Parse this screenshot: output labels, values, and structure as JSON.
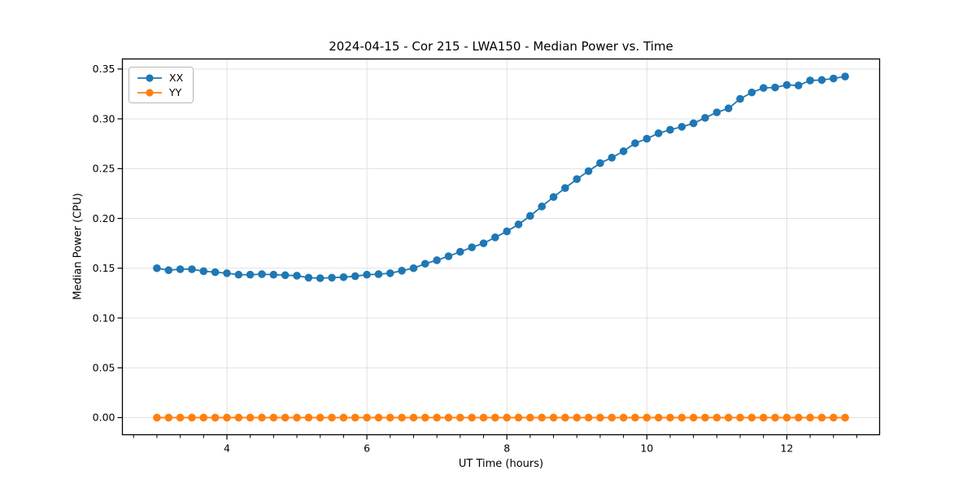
{
  "page": {
    "background": "#ffffff"
  },
  "chart_data": {
    "type": "line",
    "title": "2024-04-15 - Cor 215 - LWA150 - Median Power vs. Time",
    "xlabel": "UT Time (hours)",
    "ylabel": "Median Power (CPU)",
    "xlim": [
      2.507,
      13.326
    ],
    "ylim": [
      -0.0172,
      0.3601
    ],
    "x_major_ticks": [
      4,
      6,
      8,
      10,
      12
    ],
    "x_tick_labels": [
      "4",
      "6",
      "8",
      "10",
      "12"
    ],
    "x_minor_step": 0.333333,
    "y_ticks": [
      0.0,
      0.05,
      0.1,
      0.15,
      0.2,
      0.25,
      0.3,
      0.35
    ],
    "y_tick_labels": [
      "0.00",
      "0.05",
      "0.10",
      "0.15",
      "0.20",
      "0.25",
      "0.30",
      "0.35"
    ],
    "grid": true,
    "legend_position": "upper-left",
    "colors": {
      "grid": "#e0e0e0",
      "axis": "#000000",
      "text": "#000000"
    },
    "x": [
      3.0,
      3.167,
      3.333,
      3.5,
      3.667,
      3.833,
      4.0,
      4.167,
      4.333,
      4.5,
      4.667,
      4.833,
      5.0,
      5.167,
      5.333,
      5.5,
      5.667,
      5.833,
      6.0,
      6.167,
      6.333,
      6.5,
      6.667,
      6.833,
      7.0,
      7.167,
      7.333,
      7.5,
      7.667,
      7.833,
      8.0,
      8.167,
      8.333,
      8.5,
      8.667,
      8.833,
      9.0,
      9.167,
      9.333,
      9.5,
      9.667,
      9.833,
      10.0,
      10.167,
      10.333,
      10.5,
      10.667,
      10.833,
      11.0,
      11.167,
      11.333,
      11.5,
      11.667,
      11.833,
      12.0,
      12.167,
      12.333,
      12.5,
      12.667,
      12.833
    ],
    "series": [
      {
        "name": "XX",
        "color": "#1f77b4",
        "values": [
          0.15,
          0.148,
          0.149,
          0.149,
          0.147,
          0.146,
          0.145,
          0.1435,
          0.1435,
          0.144,
          0.1435,
          0.143,
          0.1425,
          0.1405,
          0.14,
          0.1405,
          0.141,
          0.142,
          0.1435,
          0.144,
          0.145,
          0.1475,
          0.15,
          0.1545,
          0.158,
          0.162,
          0.1665,
          0.171,
          0.175,
          0.181,
          0.187,
          0.194,
          0.2025,
          0.212,
          0.2215,
          0.2305,
          0.2395,
          0.2475,
          0.2555,
          0.261,
          0.2675,
          0.2755,
          0.28,
          0.2855,
          0.289,
          0.292,
          0.2955,
          0.301,
          0.3065,
          0.3105,
          0.32,
          0.3265,
          0.331,
          0.3315,
          0.334,
          0.3335,
          0.3385,
          0.339,
          0.3405,
          0.3425
        ]
      },
      {
        "name": "YY",
        "color": "#ff7f0e",
        "values": [
          0.0,
          0.0,
          0.0,
          0.0,
          0.0,
          0.0,
          0.0,
          0.0,
          0.0,
          0.0,
          0.0,
          0.0,
          0.0,
          0.0,
          0.0,
          0.0,
          0.0,
          0.0,
          0.0,
          0.0,
          0.0,
          0.0,
          0.0,
          0.0,
          0.0,
          0.0,
          0.0,
          0.0,
          0.0,
          0.0,
          0.0,
          0.0,
          0.0,
          0.0,
          0.0,
          0.0,
          0.0,
          0.0,
          0.0,
          0.0,
          0.0,
          0.0,
          0.0,
          0.0,
          0.0,
          0.0,
          0.0,
          0.0,
          0.0,
          0.0,
          0.0,
          0.0,
          0.0,
          0.0,
          0.0,
          0.0,
          0.0,
          0.0,
          0.0,
          0.0
        ]
      }
    ]
  }
}
